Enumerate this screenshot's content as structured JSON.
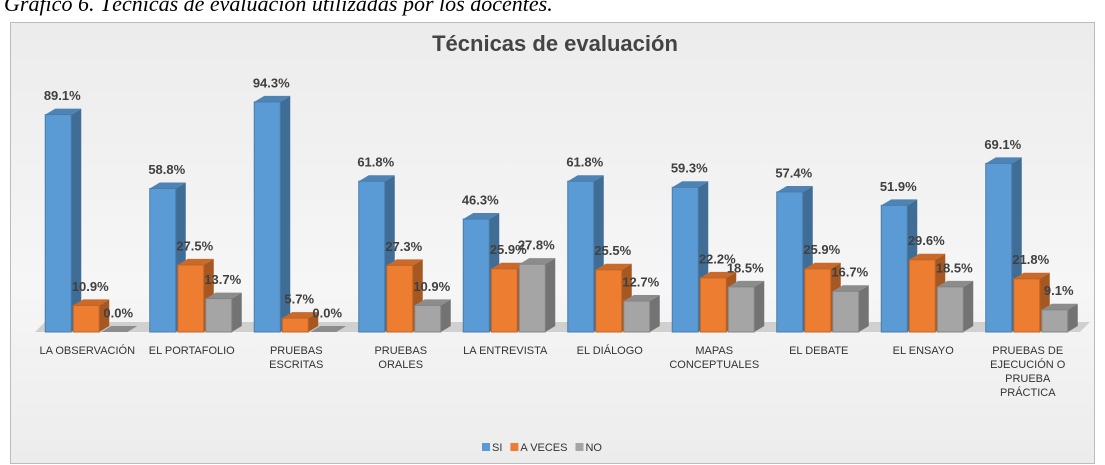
{
  "caption": "Gráfico 6. Técnicas de evaluación utilizadas por los docentes.",
  "chart_data": {
    "type": "bar3d",
    "title": "Técnicas de evaluación",
    "categories": [
      "LA OBSERVACIÓN",
      "EL PORTAFOLIO",
      "PRUEBAS ESCRITAS",
      "PRUEBAS ORALES",
      "LA ENTREVISTA",
      "EL DIÁLOGO",
      "MAPAS CONCEPTUALES",
      "EL DEBATE",
      "EL ENSAYO",
      "PRUEBAS DE EJECUCIÓN O PRUEBA PRÁCTICA"
    ],
    "series": [
      {
        "name": "SI",
        "color": "#5b9bd5",
        "values": [
          89.1,
          58.8,
          94.3,
          61.8,
          46.3,
          61.8,
          59.3,
          57.4,
          51.9,
          69.1
        ],
        "value_labels": [
          "89.1%",
          "58.8%",
          "94.3%",
          "61.8%",
          "46.3%",
          "61.8%",
          "59.3%",
          "57.4%",
          "51.9%",
          "69.1%"
        ]
      },
      {
        "name": "A VECES",
        "color": "#ed7d31",
        "values": [
          10.9,
          27.5,
          5.7,
          27.3,
          25.9,
          25.5,
          22.2,
          25.9,
          29.6,
          21.8
        ],
        "value_labels": [
          "10.9%",
          "27.5%",
          "5.7%",
          "27.3%",
          "25.9%",
          "25.5%",
          "22.2%",
          "25.9%",
          "29.6%",
          "21.8%"
        ]
      },
      {
        "name": "NO",
        "color": "#a5a5a5",
        "values": [
          0,
          13.7,
          0,
          10.9,
          27.8,
          12.7,
          18.5,
          16.7,
          18.5,
          9.1
        ],
        "value_labels": [
          "0.0%",
          "13.7%",
          "0.0%",
          "10.9%",
          "27.8%",
          "12.7%",
          "18.5%",
          "16.7%",
          "18.5%",
          "9.1%"
        ]
      }
    ],
    "ylim": [
      0,
      100
    ],
    "legend": "bottom"
  }
}
